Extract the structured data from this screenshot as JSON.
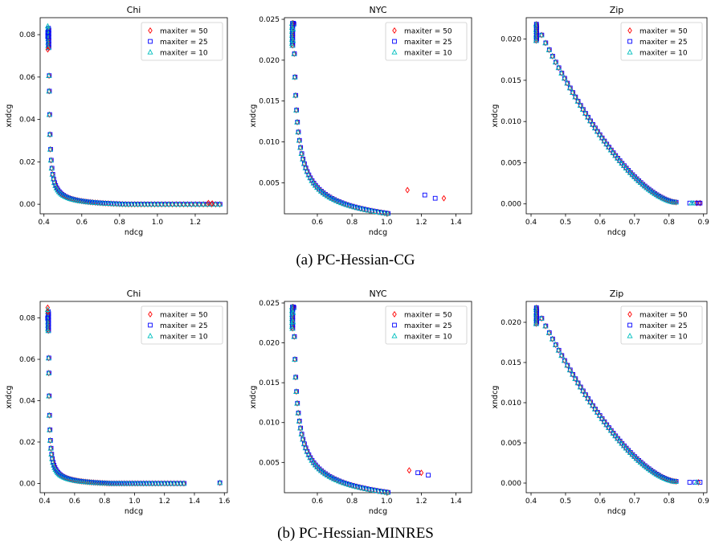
{
  "panels": [
    {
      "caption": "(a) PC-Hessian-CG"
    },
    {
      "caption": "(b) PC-Hessian-MINRES"
    }
  ],
  "chart_data": [
    {
      "type": "scatter",
      "title": "Chi",
      "xlabel": "ndcg",
      "ylabel": "xndcg",
      "xlim": [
        0.38,
        1.37
      ],
      "ylim": [
        -0.0045,
        0.088
      ],
      "xticks": [
        0.4,
        0.6,
        0.8,
        1.0,
        1.2
      ],
      "yticks": [
        0.0,
        0.02,
        0.04,
        0.06,
        0.08
      ],
      "xtick_labels": [
        "0.4",
        "0.6",
        "0.8",
        "1.0",
        "1.2"
      ],
      "ytick_labels": [
        "0.00",
        "0.02",
        "0.04",
        "0.06",
        "0.08"
      ],
      "legend": "top-right",
      "grid": false,
      "curve": {
        "x0": 0.423,
        "a": 0.00075,
        "p": 0.8,
        "c": -0.0015,
        "ymax": 0.083,
        "xmax": 1.33
      },
      "series": [
        {
          "name": "maxiter = 50",
          "marker": "diamond",
          "color": "#ff0000",
          "x": [
            0.42,
            1.27,
            1.29
          ],
          "y": [
            0.073,
            0.0006,
            0.0004
          ]
        },
        {
          "name": "maxiter = 25",
          "marker": "square",
          "color": "#0000ff",
          "x": [
            0.42,
            0.42
          ],
          "y": [
            0.081,
            0.079
          ]
        },
        {
          "name": "maxiter = 10",
          "marker": "triangle",
          "color": "#00bfbf",
          "x": [
            0.42
          ],
          "y": [
            0.084
          ]
        }
      ]
    },
    {
      "type": "scatter",
      "title": "NYC",
      "xlabel": "ndcg",
      "ylabel": "xndcg",
      "xlim": [
        0.41,
        1.49
      ],
      "ylim": [
        0.0012,
        0.0252
      ],
      "xticks": [
        0.6,
        0.8,
        1.0,
        1.2,
        1.4
      ],
      "yticks": [
        0.005,
        0.01,
        0.015,
        0.02,
        0.025
      ],
      "xtick_labels": [
        "0.6",
        "0.8",
        "1.0",
        "1.2",
        "1.4"
      ],
      "ytick_labels": [
        "0.005",
        "0.010",
        "0.015",
        "0.020",
        "0.025"
      ],
      "legend": "top-right",
      "grid": false,
      "curve": {
        "x0": 0.455,
        "a": 0.00248,
        "p": 0.5,
        "c": -0.0021,
        "ymax": 0.0245,
        "xmax": 1.44
      },
      "series": [
        {
          "name": "maxiter = 50",
          "marker": "diamond",
          "color": "#ff0000",
          "x": [
            1.12,
            1.33
          ],
          "y": [
            0.0041,
            0.0031
          ]
        },
        {
          "name": "maxiter = 25",
          "marker": "square",
          "color": "#0000ff",
          "x": [
            1.22,
            1.28
          ],
          "y": [
            0.0035,
            0.0031
          ]
        },
        {
          "name": "maxiter = 10",
          "marker": "triangle",
          "color": "#00bfbf",
          "x": [
            0.46,
            0.46
          ],
          "y": [
            0.0238,
            0.0224
          ]
        }
      ]
    },
    {
      "type": "scatter",
      "title": "Zip",
      "xlabel": "ndcg",
      "ylabel": "xndcg",
      "xlim": [
        0.386,
        0.91
      ],
      "ylim": [
        -0.0012,
        0.0226
      ],
      "xticks": [
        0.4,
        0.5,
        0.6,
        0.7,
        0.8,
        0.9
      ],
      "yticks": [
        0.0,
        0.005,
        0.01,
        0.015,
        0.02
      ],
      "xtick_labels": [
        "0.4",
        "0.5",
        "0.6",
        "0.7",
        "0.8",
        "0.9"
      ],
      "ytick_labels": [
        "0.000",
        "0.005",
        "0.010",
        "0.015",
        "0.020"
      ],
      "legend": "top-right",
      "grid": false,
      "curve": {
        "type": "linear-quad",
        "x0": 0.415,
        "x1": 0.82,
        "y0": 0.0218,
        "y1": 0.0002,
        "xmax": 0.82
      },
      "series": [
        {
          "name": "maxiter = 50",
          "marker": "diamond",
          "color": "#ff0000",
          "x": [
            0.88,
            0.89
          ],
          "y": [
            0.0001,
            0.0001
          ]
        },
        {
          "name": "maxiter = 25",
          "marker": "square",
          "color": "#0000ff",
          "x": [
            0.86,
            0.875,
            0.885,
            0.89
          ],
          "y": [
            0.0001,
            0.0001,
            0.0001,
            0.0001
          ]
        },
        {
          "name": "maxiter = 10",
          "marker": "triangle",
          "color": "#00bfbf",
          "x": [
            0.865,
            0.87
          ],
          "y": [
            0.0001,
            0.0001
          ]
        }
      ]
    },
    {
      "type": "scatter",
      "title": "Chi",
      "xlabel": "ndcg",
      "ylabel": "xndcg",
      "xlim": [
        0.37,
        1.62
      ],
      "ylim": [
        -0.0045,
        0.088
      ],
      "xticks": [
        0.4,
        0.6,
        0.8,
        1.0,
        1.2,
        1.4,
        1.6
      ],
      "yticks": [
        0.0,
        0.02,
        0.04,
        0.06,
        0.08
      ],
      "xtick_labels": [
        "0.4",
        "0.6",
        "0.8",
        "1.0",
        "1.2",
        "1.4",
        "1.6"
      ],
      "ytick_labels": [
        "0.00",
        "0.02",
        "0.04",
        "0.06",
        "0.08"
      ],
      "legend": "top-right",
      "grid": false,
      "curve": {
        "x0": 0.423,
        "a": 0.00075,
        "p": 0.8,
        "c": -0.0015,
        "ymax": 0.083,
        "xmax": 1.33
      },
      "series": [
        {
          "name": "maxiter = 50",
          "marker": "diamond",
          "color": "#ff0000",
          "x": [
            0.42,
            0.42,
            1.57
          ],
          "y": [
            0.085,
            0.083,
            0.0003
          ]
        },
        {
          "name": "maxiter = 25",
          "marker": "square",
          "color": "#0000ff",
          "x": [
            0.42,
            1.57
          ],
          "y": [
            0.08,
            0.0003
          ]
        },
        {
          "name": "maxiter = 10",
          "marker": "triangle",
          "color": "#00bfbf",
          "x": [
            0.42,
            1.57
          ],
          "y": [
            0.084,
            0.0003
          ]
        }
      ]
    },
    {
      "type": "scatter",
      "title": "NYC",
      "xlabel": "ndcg",
      "ylabel": "xndcg",
      "xlim": [
        0.41,
        1.49
      ],
      "ylim": [
        0.0012,
        0.0252
      ],
      "xticks": [
        0.6,
        0.8,
        1.0,
        1.2,
        1.4
      ],
      "yticks": [
        0.005,
        0.01,
        0.015,
        0.02,
        0.025
      ],
      "xtick_labels": [
        "0.6",
        "0.8",
        "1.0",
        "1.2",
        "1.4"
      ],
      "ytick_labels": [
        "0.005",
        "0.010",
        "0.015",
        "0.020",
        "0.025"
      ],
      "legend": "top-right",
      "grid": false,
      "curve": {
        "x0": 0.455,
        "a": 0.00248,
        "p": 0.5,
        "c": -0.0021,
        "ymax": 0.0245,
        "xmax": 1.44
      },
      "series": [
        {
          "name": "maxiter = 50",
          "marker": "diamond",
          "color": "#ff0000",
          "x": [
            1.13,
            1.2
          ],
          "y": [
            0.004,
            0.0037
          ]
        },
        {
          "name": "maxiter = 25",
          "marker": "square",
          "color": "#0000ff",
          "x": [
            1.18,
            1.24
          ],
          "y": [
            0.0037,
            0.0034
          ]
        },
        {
          "name": "maxiter = 10",
          "marker": "triangle",
          "color": "#00bfbf",
          "x": [
            0.46,
            0.46
          ],
          "y": [
            0.0238,
            0.0226
          ]
        }
      ]
    },
    {
      "type": "scatter",
      "title": "Zip",
      "xlabel": "ndcg",
      "ylabel": "xndcg",
      "xlim": [
        0.386,
        0.91
      ],
      "ylim": [
        -0.0012,
        0.0226
      ],
      "xticks": [
        0.4,
        0.5,
        0.6,
        0.7,
        0.8,
        0.9
      ],
      "yticks": [
        0.0,
        0.005,
        0.01,
        0.015,
        0.02
      ],
      "xtick_labels": [
        "0.4",
        "0.5",
        "0.6",
        "0.7",
        "0.8",
        "0.9"
      ],
      "ytick_labels": [
        "0.000",
        "0.005",
        "0.010",
        "0.015",
        "0.020"
      ],
      "legend": "top-right",
      "grid": false,
      "curve": {
        "type": "linear-quad",
        "x0": 0.415,
        "x1": 0.82,
        "y0": 0.0218,
        "y1": 0.0002,
        "xmax": 0.82
      },
      "series": [
        {
          "name": "maxiter = 50",
          "marker": "diamond",
          "color": "#ff0000",
          "x": [
            0.885
          ],
          "y": [
            0.0001
          ]
        },
        {
          "name": "maxiter = 25",
          "marker": "square",
          "color": "#0000ff",
          "x": [
            0.86,
            0.875,
            0.89
          ],
          "y": [
            0.0001,
            0.0001,
            0.0001
          ]
        },
        {
          "name": "maxiter = 10",
          "marker": "triangle",
          "color": "#00bfbf",
          "x": [
            0.88
          ],
          "y": [
            0.0001
          ]
        }
      ]
    }
  ]
}
